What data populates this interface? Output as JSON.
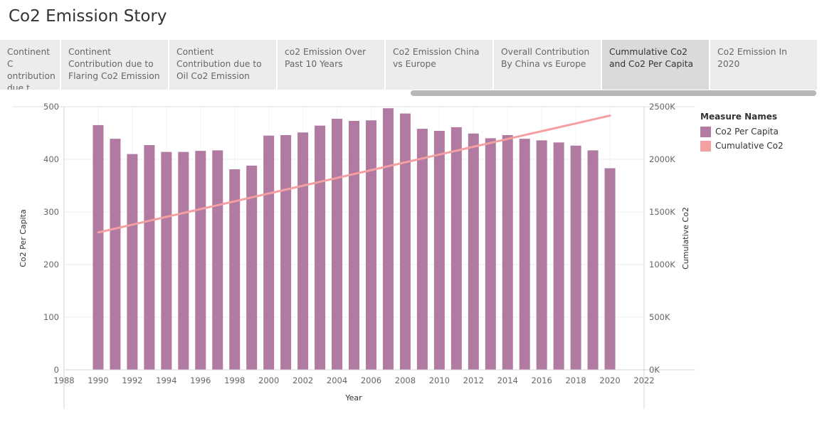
{
  "story_title": "Co2 Emission Story",
  "tabs": [
    {
      "label": "Continent C ontribution due t..",
      "active": false
    },
    {
      "label": "Continent Contribution due to Flaring Co2 Emission",
      "active": false
    },
    {
      "label": "Contient Contribution due to Oil Co2 Emission",
      "active": false
    },
    {
      "label": "co2 Emission Over Past 10 Years",
      "active": false
    },
    {
      "label": "Co2 Emission China vs Europe",
      "active": false
    },
    {
      "label": "Overall Contribution By China vs Europe",
      "active": false
    },
    {
      "label": "Cummulative Co2 and Co2 Per Capita",
      "active": true
    },
    {
      "label": "Co2 Emission In 2020",
      "active": false
    }
  ],
  "legend": {
    "title": "Measure Names",
    "items": [
      {
        "label": "Co2 Per Capita",
        "color": "#b07aa1"
      },
      {
        "label": "Cumulative Co2",
        "color": "#f4a0a3"
      }
    ]
  },
  "chart_data": {
    "type": "bar",
    "xlabel": "Year",
    "ylabel": "Co2 Per Capita",
    "y2label": "Cumulative Co2",
    "xlim": [
      1988,
      2022
    ],
    "x_ticks": [
      "1988",
      "1990",
      "1992",
      "1994",
      "1996",
      "1998",
      "2000",
      "2002",
      "2004",
      "2006",
      "2008",
      "2010",
      "2012",
      "2014",
      "2016",
      "2018",
      "2020",
      "2022"
    ],
    "ylim": [
      0,
      500
    ],
    "y_ticks": [
      "0",
      "100",
      "200",
      "300",
      "400",
      "500"
    ],
    "y2lim": [
      0,
      2500
    ],
    "y2_ticks": [
      "0K",
      "500K",
      "1000K",
      "1500K",
      "2000K",
      "2500K"
    ],
    "grid": true,
    "legend_position": "right",
    "x": [
      1990,
      1991,
      1992,
      1993,
      1994,
      1995,
      1996,
      1997,
      1998,
      1999,
      2000,
      2001,
      2002,
      2003,
      2004,
      2005,
      2006,
      2007,
      2008,
      2009,
      2010,
      2011,
      2012,
      2013,
      2014,
      2015,
      2016,
      2017,
      2018,
      2019,
      2020
    ],
    "series": [
      {
        "name": "Co2 Per Capita",
        "type": "bar",
        "axis": "left",
        "color": "#b07aa1",
        "values": [
          465,
          439,
          410,
          427,
          414,
          414,
          416,
          417,
          381,
          388,
          445,
          446,
          451,
          464,
          477,
          473,
          474,
          497,
          487,
          458,
          454,
          461,
          449,
          440,
          446,
          439,
          436,
          432,
          426,
          417,
          383
        ]
      },
      {
        "name": "Cumulative Co2",
        "type": "line",
        "axis": "right",
        "color": "#f4a0a3",
        "values": [
          1305,
          1342,
          1379,
          1416,
          1453,
          1490,
          1527,
          1564,
          1601,
          1638,
          1675,
          1712,
          1749,
          1786,
          1823,
          1860,
          1897,
          1934,
          1971,
          2008,
          2045,
          2082,
          2119,
          2156,
          2193,
          2230,
          2267,
          2304,
          2341,
          2378,
          2415
        ]
      }
    ]
  }
}
